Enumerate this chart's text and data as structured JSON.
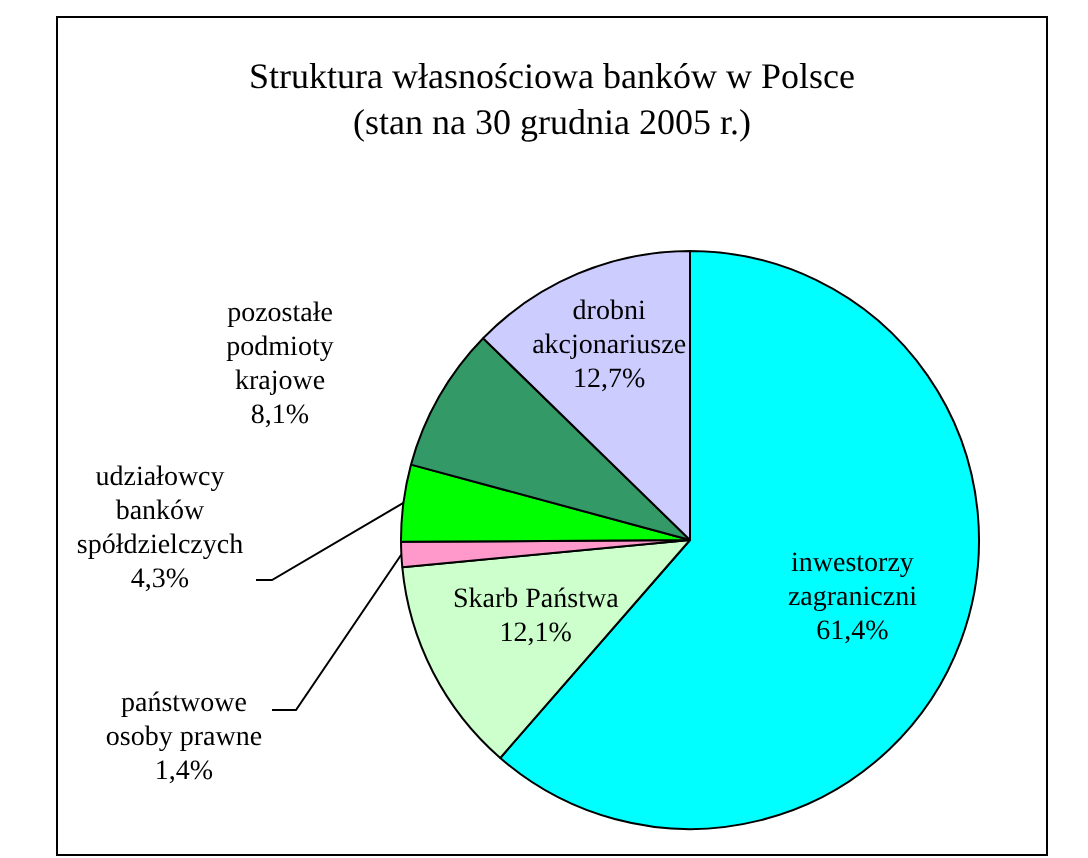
{
  "chart_data": {
    "type": "pie",
    "title": "Struktura własnościowa banków w Polsce",
    "subtitle": "(stan na 30 grudnia 2005 r.)",
    "categories": [
      "inwestorzy zagraniczni",
      "Skarb Państwa",
      "państwowe osoby prawne",
      "udziałowcy banków spółdzielczych",
      "pozostałe podmioty krajowe",
      "drobni akcjonariusze"
    ],
    "values": [
      61.4,
      12.1,
      1.4,
      4.3,
      8.1,
      12.7
    ],
    "colors": [
      "#00ffff",
      "#ccffcc",
      "#ff99cc",
      "#00ff00",
      "#339966",
      "#ccccff"
    ],
    "value_labels": [
      "61,4%",
      "12,1%",
      "1,4%",
      "4,3%",
      "8,1%",
      "12,7%"
    ],
    "legend": false
  }
}
